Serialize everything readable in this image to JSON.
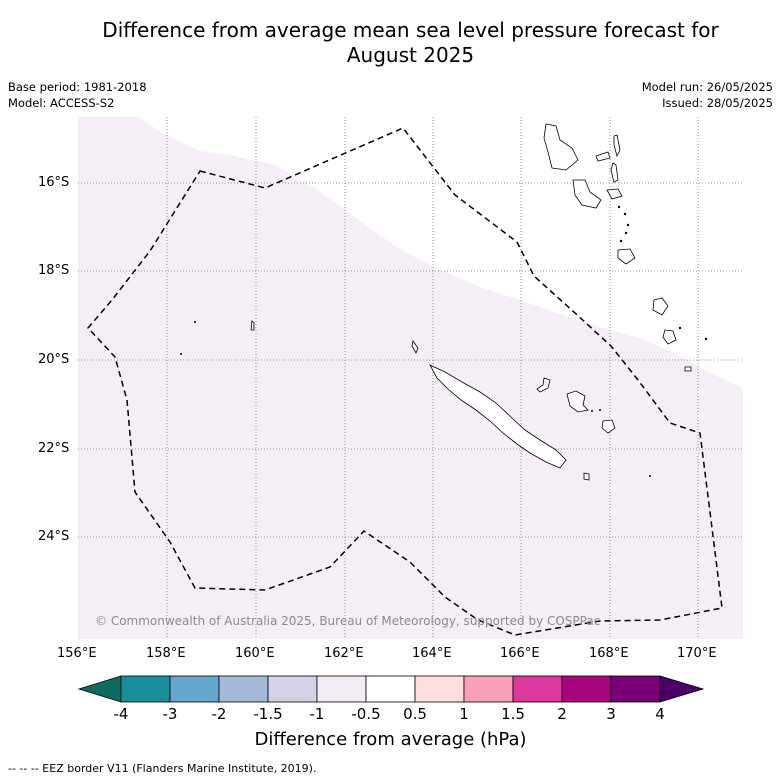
{
  "title": "Difference from average mean sea level pressure forecast for\nAugust 2025",
  "meta_left": {
    "base_period": "Base period: 1981-2018",
    "model": "Model: ACCESS-S2"
  },
  "meta_right": {
    "model_run": "Model run: 26/05/2025",
    "issued": "Issued: 28/05/2025"
  },
  "map": {
    "lat_labels": [
      "16°S",
      "18°S",
      "20°S",
      "22°S",
      "24°S"
    ],
    "lon_labels": [
      "156°E",
      "158°E",
      "160°E",
      "162°E",
      "164°E",
      "166°E",
      "168°E",
      "170°E"
    ],
    "shading_color": "#f5eef7",
    "copyright": "© Commonwealth of Australia 2025, Bureau of Meteorology, supported by COSPPac",
    "dominant_anomaly_band": "-1 to -0.5 hPa"
  },
  "colorbar": {
    "title": "Difference from average (hPa)",
    "tick_labels": [
      "-4",
      "-3",
      "-2",
      "-1.5",
      "-1",
      "-0.5",
      "0.5",
      "1",
      "1.5",
      "2",
      "3",
      "4"
    ],
    "colors": [
      "#0d6b60",
      "#1b8f99",
      "#64a7cf",
      "#a6b9da",
      "#d3d1e5",
      "#f4ecf5",
      "#ffffff",
      "#fde0de",
      "#f9a0ba",
      "#db3a9c",
      "#a8047e",
      "#7b0077",
      "#4a0066"
    ]
  },
  "legend_note": "--  --  -- EEZ border V11 (Flanders Marine Institute, 2019)."
}
